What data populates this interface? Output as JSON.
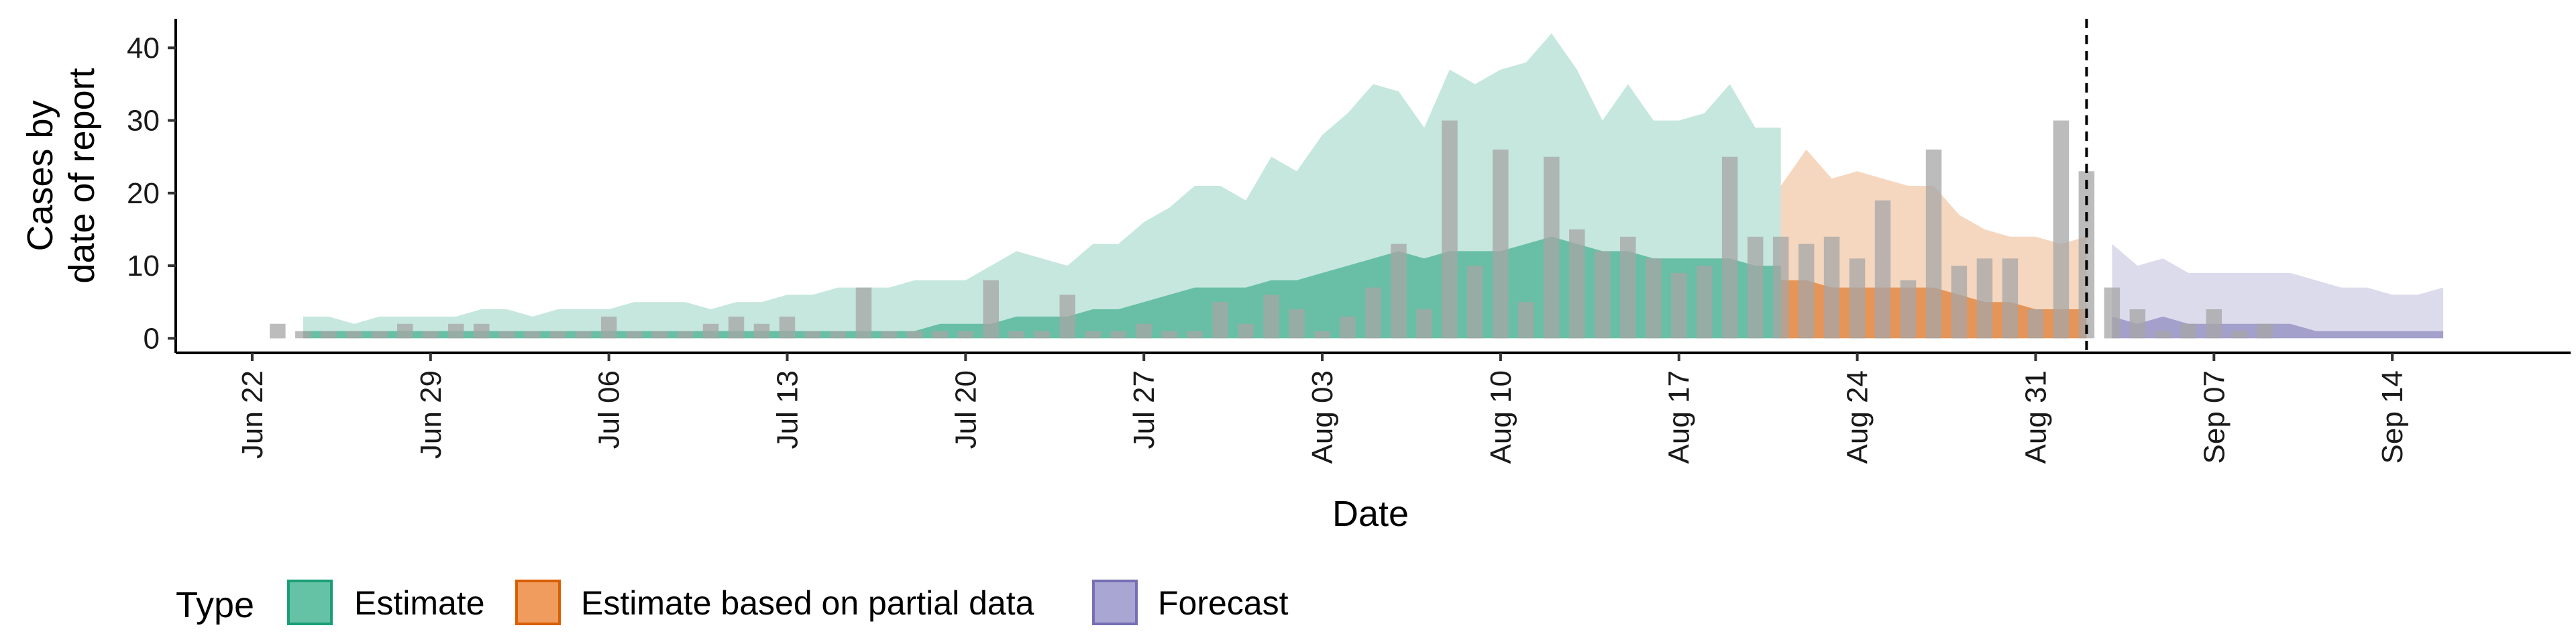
{
  "chart_data": {
    "type": "area",
    "xlabel": "Date",
    "ylabel_lines": [
      "Cases by",
      "date of report"
    ],
    "x_ticks": [
      "Jun 22",
      "Jun 29",
      "Jul 06",
      "Jul 13",
      "Jul 20",
      "Jul 27",
      "Aug 03",
      "Aug 10",
      "Aug 17",
      "Aug 24",
      "Aug 31",
      "Sep 07",
      "Sep 14"
    ],
    "x_tick_dates": [
      "2020-06-22",
      "2020-06-29",
      "2020-07-06",
      "2020-07-13",
      "2020-07-20",
      "2020-07-27",
      "2020-08-03",
      "2020-08-10",
      "2020-08-17",
      "2020-08-24",
      "2020-08-31",
      "2020-09-07",
      "2020-09-14"
    ],
    "x_range": [
      "2020-06-19",
      "2020-09-21"
    ],
    "y_ticks": [
      0,
      10,
      20,
      30,
      40
    ],
    "ylim": [
      -2,
      44
    ],
    "grid": false,
    "forecast_date": "2020-09-02",
    "legend": {
      "title": "Type",
      "position": "bottom",
      "entries": [
        {
          "label": "Estimate",
          "fill": "#66c2a5",
          "stroke": "#1b9e77"
        },
        {
          "label": "Estimate based on partial data",
          "fill": "#f19c5f",
          "stroke": "#d95f02"
        },
        {
          "label": "Forecast",
          "fill": "#a9a6d4",
          "stroke": "#7570b3"
        }
      ]
    },
    "series": [
      {
        "type": "Estimate",
        "color": "#1b9e77",
        "start": "2020-06-24",
        "outer_lower": [
          0,
          0,
          0,
          0,
          0,
          0,
          0,
          0,
          0,
          0,
          0,
          0,
          0,
          0,
          0,
          0,
          0,
          0,
          0,
          0,
          0,
          0,
          0,
          0,
          0,
          0,
          0,
          0,
          0,
          0,
          0,
          0,
          0,
          0,
          0,
          0,
          0,
          0,
          0,
          0,
          0,
          0,
          0,
          0,
          0,
          0,
          0,
          0,
          0,
          0,
          0,
          0,
          0,
          0,
          0,
          0,
          0,
          0,
          0
        ],
        "outer_upper": [
          3,
          3,
          2,
          3,
          3,
          3,
          3,
          4,
          4,
          3,
          4,
          4,
          4,
          5,
          5,
          5,
          4,
          5,
          5,
          6,
          6,
          7,
          7,
          7,
          8,
          8,
          8,
          10,
          12,
          11,
          10,
          13,
          13,
          16,
          18,
          21,
          21,
          19,
          25,
          23,
          28,
          31,
          35,
          34,
          29,
          37,
          35,
          37,
          38,
          42,
          37,
          30,
          35,
          30,
          30,
          31,
          35,
          29,
          29
        ],
        "inner_lower": [
          0,
          0,
          0,
          0,
          0,
          0,
          0,
          0,
          0,
          0,
          0,
          0,
          0,
          0,
          0,
          0,
          0,
          0,
          0,
          0,
          0,
          0,
          0,
          0,
          0,
          0,
          0,
          0,
          0,
          0,
          0,
          0,
          0,
          0,
          0,
          0,
          0,
          0,
          0,
          0,
          0,
          0,
          0,
          0,
          0,
          0,
          0,
          0,
          0,
          0,
          0,
          0,
          0,
          0,
          0,
          0,
          0,
          0,
          0
        ],
        "inner_upper": [
          1,
          1,
          1,
          1,
          1,
          1,
          1,
          1,
          1,
          1,
          1,
          1,
          1,
          1,
          1,
          1,
          1,
          1,
          1,
          1,
          1,
          1,
          1,
          1,
          1,
          2,
          2,
          2,
          3,
          3,
          3,
          4,
          4,
          5,
          6,
          7,
          7,
          7,
          8,
          8,
          9,
          10,
          11,
          12,
          11,
          12,
          12,
          12,
          13,
          14,
          13,
          12,
          12,
          11,
          11,
          11,
          11,
          10,
          10
        ]
      },
      {
        "type": "Estimate based on partial data",
        "color": "#d95f02",
        "start": "2020-08-21",
        "outer_lower": [
          0,
          0,
          0,
          0,
          0,
          0,
          0,
          0,
          0,
          0,
          0,
          0,
          0
        ],
        "outer_upper": [
          21,
          26,
          22,
          23,
          22,
          21,
          21,
          17,
          15,
          14,
          14,
          13,
          14
        ],
        "inner_lower": [
          0,
          0,
          0,
          0,
          0,
          0,
          0,
          0,
          0,
          0,
          0,
          0,
          0
        ],
        "inner_upper": [
          8,
          8,
          7,
          7,
          7,
          7,
          7,
          6,
          5,
          5,
          4,
          4,
          4
        ]
      },
      {
        "type": "Forecast",
        "color": "#7570b3",
        "start": "2020-09-03",
        "outer_lower": [
          0,
          0,
          0,
          0,
          0,
          0,
          0,
          0,
          0,
          0,
          0,
          0,
          0,
          0
        ],
        "outer_upper": [
          13,
          10,
          11,
          9,
          9,
          9,
          9,
          9,
          8,
          7,
          7,
          6,
          6,
          7
        ],
        "inner_lower": [
          0,
          0,
          0,
          0,
          0,
          0,
          0,
          0,
          0,
          0,
          0,
          0,
          0,
          0
        ],
        "inner_upper": [
          3,
          2,
          3,
          2,
          2,
          2,
          2,
          2,
          1,
          1,
          1,
          1,
          1,
          1
        ]
      }
    ],
    "reported_cases": {
      "start": "2020-06-23",
      "color": "#a6a6a6",
      "values": [
        2,
        1,
        1,
        1,
        1,
        2,
        1,
        2,
        2,
        1,
        1,
        1,
        1,
        3,
        1,
        1,
        1,
        2,
        3,
        2,
        3,
        1,
        1,
        7,
        1,
        1,
        1,
        1,
        8,
        1,
        1,
        6,
        1,
        1,
        2,
        1,
        1,
        5,
        2,
        6,
        4,
        1,
        3,
        7,
        13,
        4,
        30,
        10,
        26,
        5,
        25,
        15,
        12,
        14,
        11,
        9,
        10,
        25,
        14,
        14,
        13,
        14,
        11,
        19,
        8,
        26,
        10,
        11,
        11,
        4,
        30,
        23,
        7,
        4,
        1,
        2,
        4,
        1,
        2
      ]
    }
  }
}
